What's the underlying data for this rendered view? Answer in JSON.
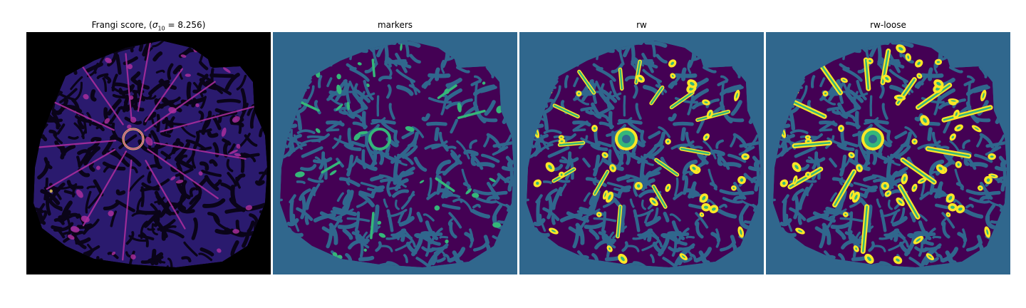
{
  "panels": [
    {
      "title_prefix": "Frangi score, (",
      "title_symbol": "σ",
      "title_sub": "10",
      "title_suffix": " = 8.256)"
    },
    {
      "title": "markers"
    },
    {
      "title": "rw"
    },
    {
      "title": "rw-loose"
    }
  ],
  "colors": {
    "frangi_background": "#000000",
    "frangi_tissue": "#2a1a6e",
    "frangi_ridge": "#b02fa0",
    "frangi_peak": "#f7d35c",
    "label_background": "#30678d",
    "label_tissue": "#440154",
    "label_marker": "#35b779",
    "label_segment": "#fde725"
  }
}
